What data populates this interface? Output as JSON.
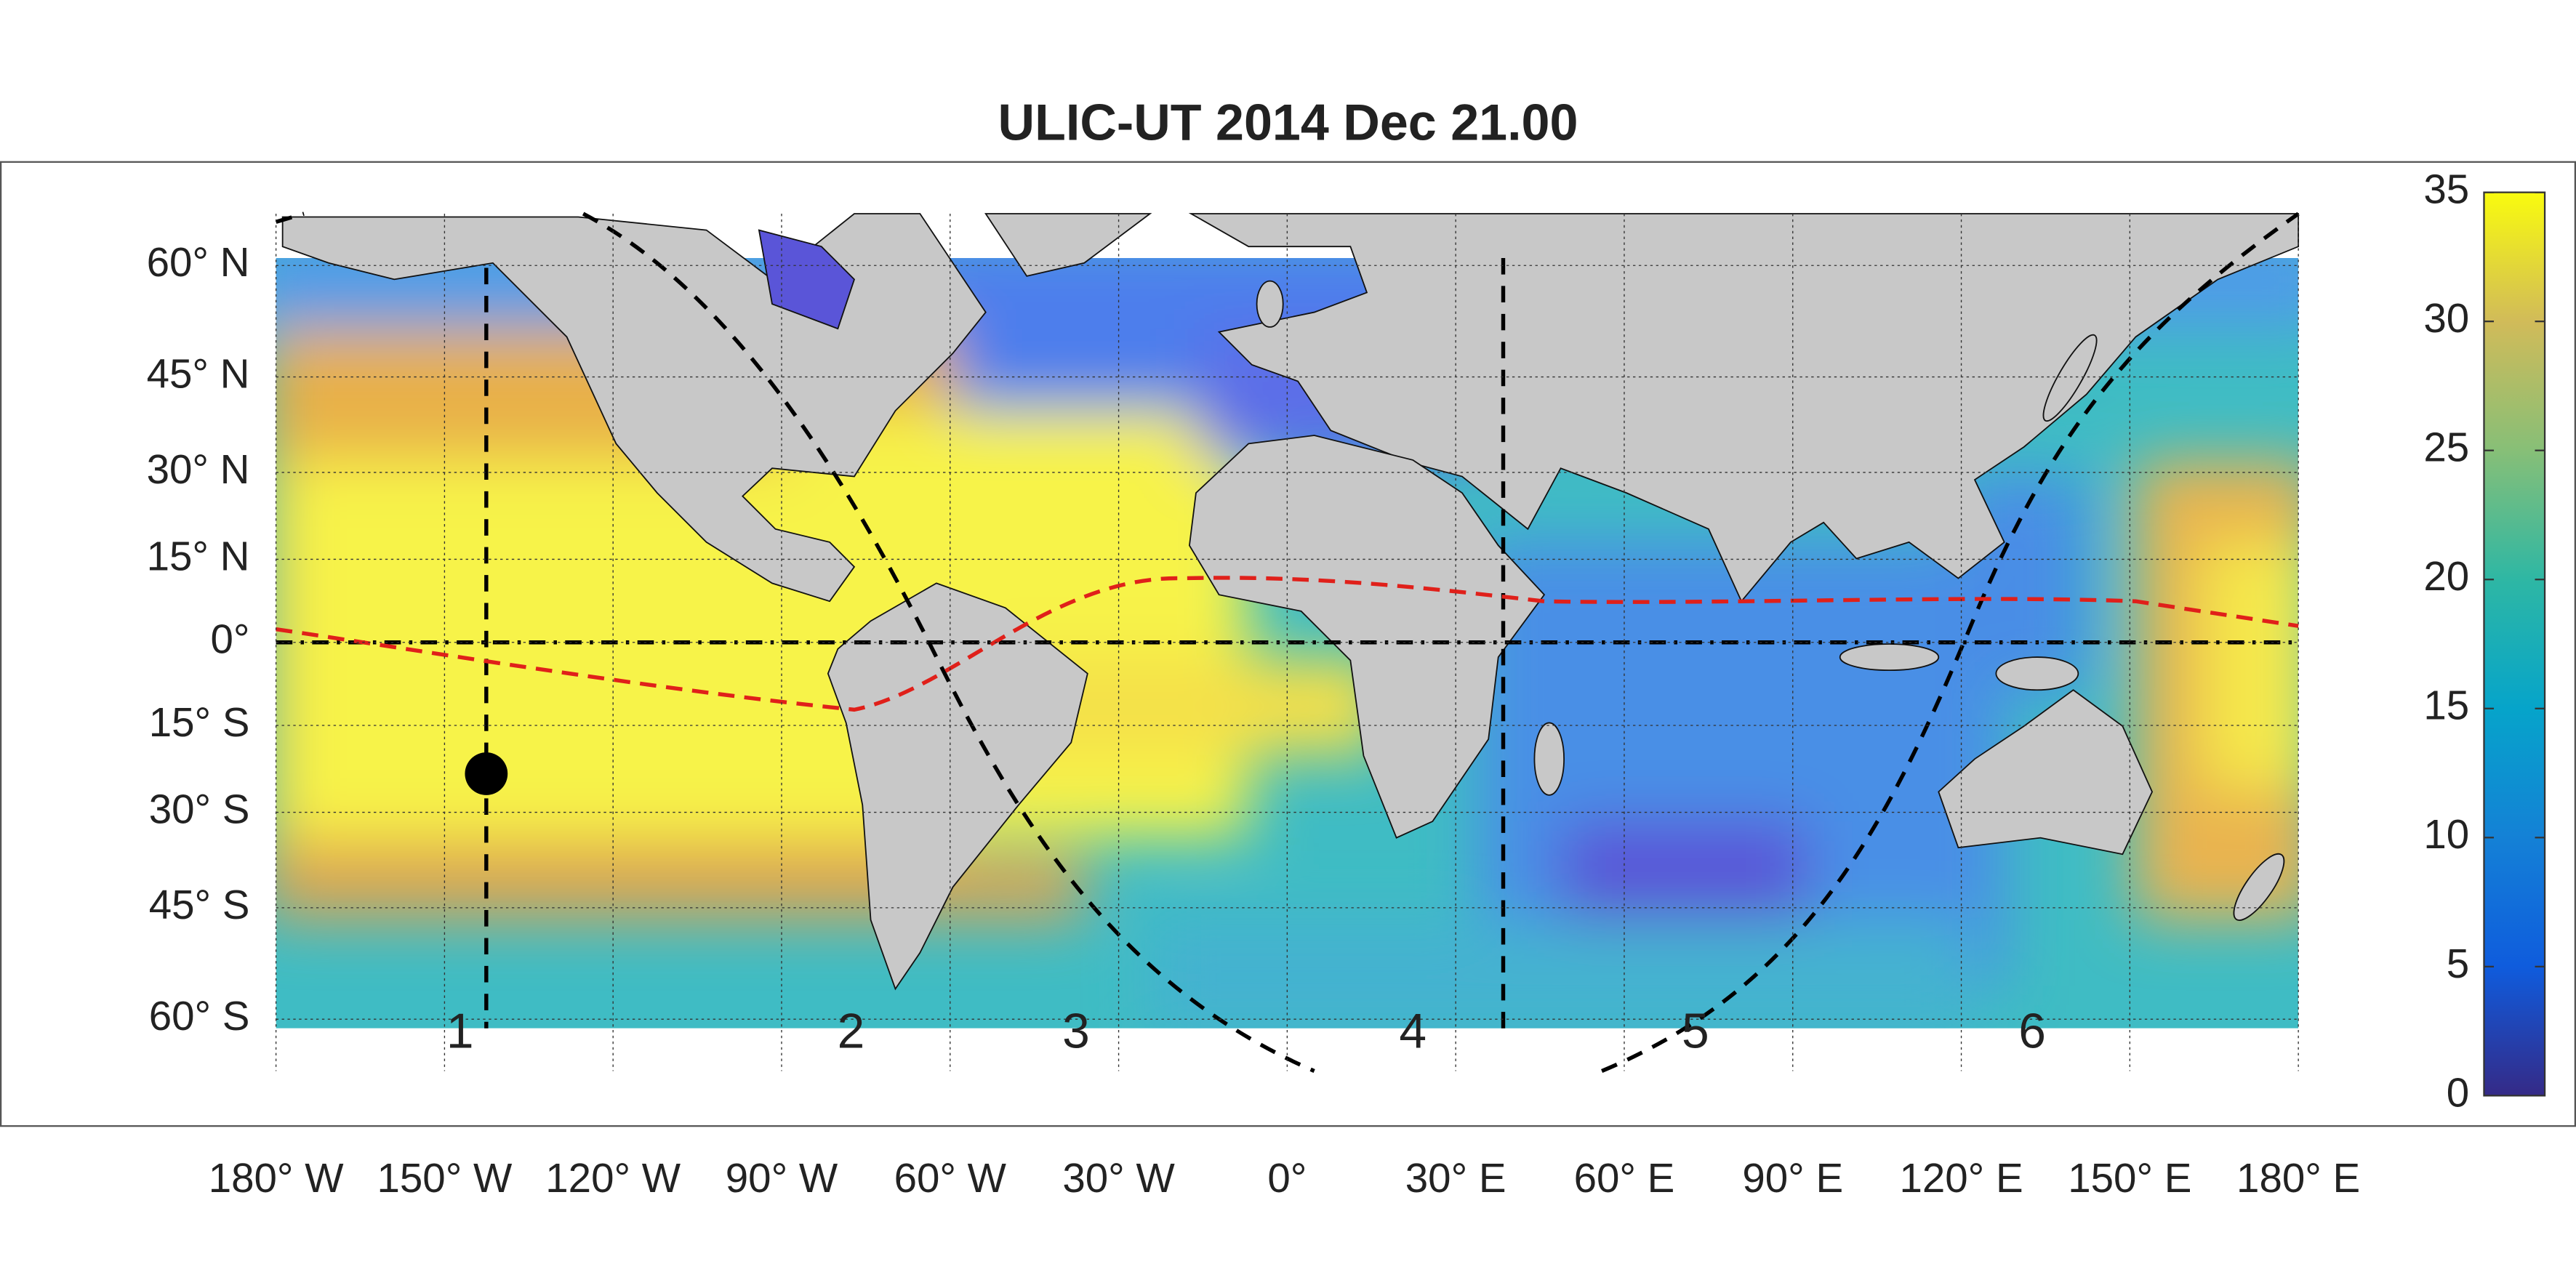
{
  "title": "ULIC-UT 2014 Dec 21.00",
  "map": {
    "projection": "miller",
    "xlim": [
      -180,
      180
    ],
    "ylim": [
      -66,
      66
    ],
    "grid": true,
    "xticks": [
      {
        "value": -180,
        "label": "180° W"
      },
      {
        "value": -150,
        "label": "150° W"
      },
      {
        "value": -120,
        "label": "120° W"
      },
      {
        "value": -90,
        "label": "90° W"
      },
      {
        "value": -60,
        "label": "60° W"
      },
      {
        "value": -30,
        "label": "30° W"
      },
      {
        "value": 0,
        "label": "0°"
      },
      {
        "value": 30,
        "label": "30° E"
      },
      {
        "value": 60,
        "label": "60° E"
      },
      {
        "value": 90,
        "label": "90° E"
      },
      {
        "value": 120,
        "label": "120° E"
      },
      {
        "value": 150,
        "label": "150° E"
      },
      {
        "value": 180,
        "label": "180° E"
      }
    ],
    "yticks": [
      {
        "value": 60,
        "label": "60° N"
      },
      {
        "value": 45,
        "label": "45° N"
      },
      {
        "value": 30,
        "label": "30° N"
      },
      {
        "value": 15,
        "label": "15° N"
      },
      {
        "value": 0,
        "label": "0°"
      },
      {
        "value": -15,
        "label": "15° S"
      },
      {
        "value": -30,
        "label": "30° S"
      },
      {
        "value": -45,
        "label": "45° S"
      },
      {
        "value": -60,
        "label": "60° S"
      }
    ]
  },
  "colorbar": {
    "colormap": "parula",
    "lim": [
      0,
      35
    ],
    "ticks": [
      0,
      5,
      10,
      15,
      20,
      25,
      30,
      35
    ]
  },
  "region_labels": [
    "1",
    "2",
    "3",
    "4",
    "5",
    "6"
  ]
}
